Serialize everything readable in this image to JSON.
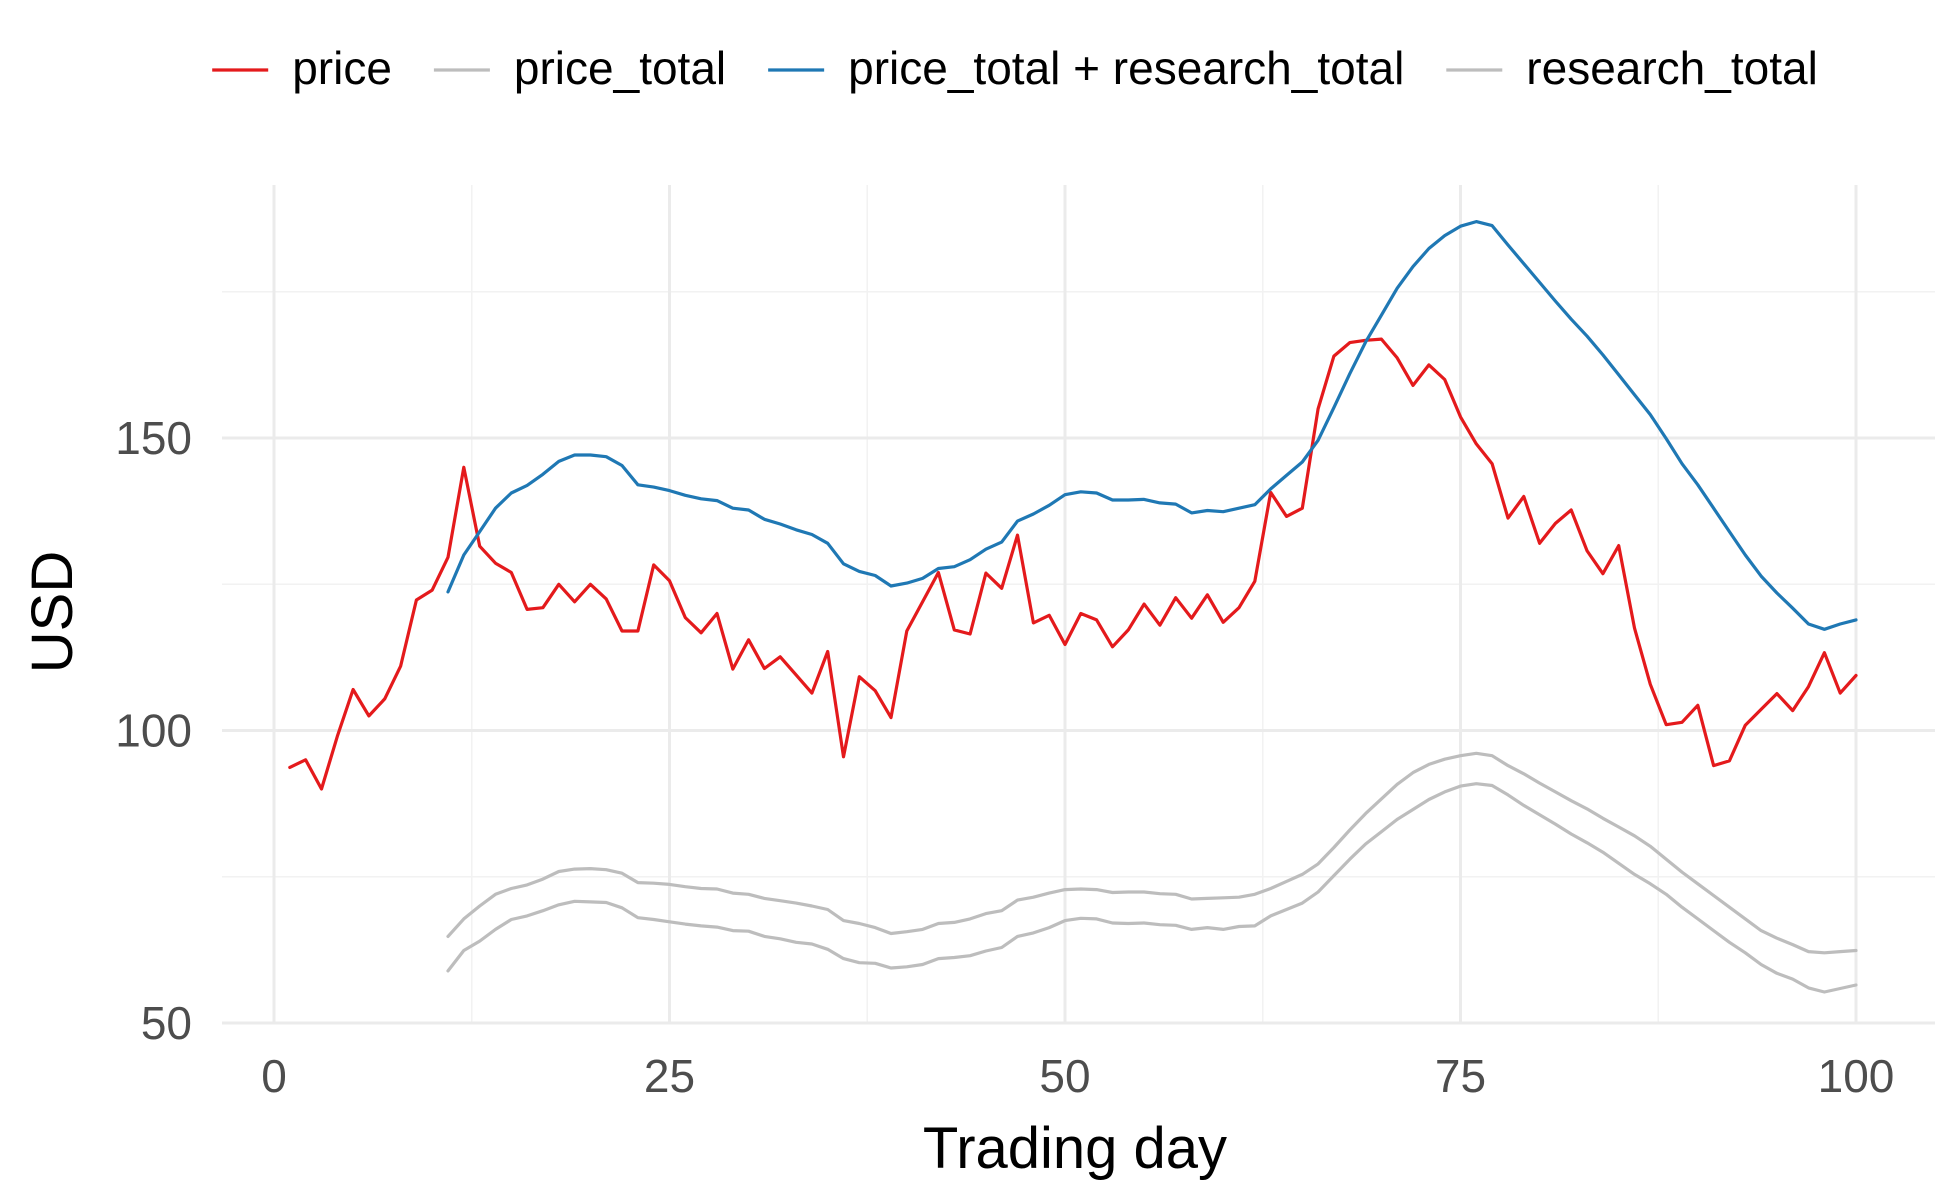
{
  "chart_data": {
    "type": "line",
    "title": "",
    "xlabel": "Trading day",
    "ylabel": "USD",
    "xlim": [
      1,
      100
    ],
    "ylim": [
      50,
      188
    ],
    "x_ticks": [
      0,
      25,
      50,
      75,
      100
    ],
    "y_ticks": [
      50,
      100,
      150
    ],
    "x_tick_labels": [
      "0",
      "25",
      "50",
      "75",
      "100"
    ],
    "y_tick_labels": [
      "50",
      "100",
      "150"
    ],
    "grid": true,
    "legend_position": "top",
    "series": [
      {
        "name": "price",
        "color": "#e41a1c",
        "x": [
          1,
          2,
          3,
          4,
          5,
          6,
          7,
          8,
          9,
          10,
          11,
          12,
          13,
          14,
          15,
          16,
          17,
          18,
          19,
          20,
          21,
          22,
          23,
          24,
          25,
          26,
          27,
          28,
          29,
          30,
          31,
          32,
          33,
          34,
          35,
          36,
          37,
          38,
          39,
          40,
          41,
          42,
          43,
          44,
          45,
          46,
          47,
          48,
          49,
          50,
          51,
          52,
          53,
          54,
          55,
          56,
          57,
          58,
          59,
          60,
          61,
          62,
          63,
          64,
          65,
          66,
          67,
          68,
          69,
          70,
          71,
          72,
          73,
          74,
          75,
          76,
          77,
          78,
          79,
          80,
          81,
          82,
          83,
          84,
          85,
          86,
          87,
          88,
          89,
          90,
          91,
          92,
          93,
          94,
          95,
          96,
          97,
          98,
          99,
          100
        ],
        "y": [
          93.7,
          95,
          90,
          99,
          107,
          102.5,
          105.4,
          111,
          122.3,
          124,
          129.6,
          145,
          131.5,
          128.6,
          127,
          120.7,
          121,
          125,
          122,
          125,
          122.5,
          117,
          117,
          128.3,
          125.6,
          119.3,
          116.7,
          120,
          110.5,
          115.5,
          110.6,
          112.6,
          109.5,
          106.4,
          113.5,
          95.5,
          109.2,
          106.8,
          102.2,
          117,
          122,
          127,
          117.2,
          116.5,
          126.9,
          124.3,
          133.4,
          118.4,
          119.7,
          114.7,
          120,
          118.9,
          114.3,
          117.2,
          121.6,
          118,
          122.7,
          119.2,
          123.2,
          118.5,
          121,
          125.5,
          140.7,
          136.6,
          138,
          155,
          164,
          166.3,
          166.7,
          166.9,
          163.7,
          159,
          162.5,
          160,
          153.6,
          149,
          145.6,
          136.3,
          140,
          132,
          135.4,
          137.7,
          130.7,
          126.8,
          131.6,
          117.5,
          107.9,
          101,
          101.4,
          104.3,
          94,
          94.8,
          100.9,
          103.6,
          106.3,
          103.4,
          107.5,
          113.3,
          106.4,
          109.4
        ]
      },
      {
        "name": "price_total",
        "color": "#bdbdbd",
        "x": [
          11,
          12,
          13,
          14,
          15,
          16,
          17,
          18,
          19,
          20,
          21,
          22,
          23,
          24,
          25,
          26,
          27,
          28,
          29,
          30,
          31,
          32,
          33,
          34,
          35,
          36,
          37,
          38,
          39,
          40,
          41,
          42,
          43,
          44,
          45,
          46,
          47,
          48,
          49,
          50,
          51,
          52,
          53,
          54,
          55,
          56,
          57,
          58,
          59,
          60,
          61,
          62,
          63,
          64,
          65,
          66,
          67,
          68,
          69,
          70,
          71,
          72,
          73,
          74,
          75,
          76,
          77,
          78,
          79,
          80,
          81,
          82,
          83,
          84,
          85,
          86,
          87,
          88,
          89,
          90,
          91,
          92,
          93,
          94,
          95,
          96,
          97,
          98,
          99,
          100
        ],
        "y": [
          64.8,
          67.8,
          70,
          72,
          73,
          73.6,
          74.6,
          75.9,
          76.3,
          76.4,
          76.2,
          75.6,
          74,
          73.9,
          73.7,
          73.3,
          73,
          72.9,
          72.2,
          72,
          71.3,
          70.9,
          70.5,
          70,
          69.4,
          67.5,
          67,
          66.3,
          65.3,
          65.6,
          66,
          67,
          67.2,
          67.8,
          68.7,
          69.2,
          71,
          71.5,
          72.2,
          72.8,
          72.9,
          72.8,
          72.3,
          72.4,
          72.4,
          72.1,
          72,
          71.2,
          71.3,
          71.4,
          71.5,
          72,
          73,
          74.2,
          75.4,
          77.2,
          80,
          83,
          85.8,
          88.3,
          90.8,
          92.8,
          94.2,
          95.1,
          95.7,
          96.1,
          95.7,
          94,
          92.6,
          91,
          89.5,
          88,
          86.6,
          85,
          83.5,
          82,
          80.2,
          78,
          75.8,
          73.8,
          71.8,
          69.8,
          67.8,
          65.8,
          64.5,
          63.4,
          62.2,
          62,
          62.2,
          62.4
        ]
      },
      {
        "name": "price_total + research_total",
        "color": "#1f78b4",
        "x": [
          11,
          12,
          13,
          14,
          15,
          16,
          17,
          18,
          19,
          20,
          21,
          22,
          23,
          24,
          25,
          26,
          27,
          28,
          29,
          30,
          31,
          32,
          33,
          34,
          35,
          36,
          37,
          38,
          39,
          40,
          41,
          42,
          43,
          44,
          45,
          46,
          47,
          48,
          49,
          50,
          51,
          52,
          53,
          54,
          55,
          56,
          57,
          58,
          59,
          60,
          61,
          62,
          63,
          64,
          65,
          66,
          67,
          68,
          69,
          70,
          71,
          72,
          73,
          74,
          75,
          76,
          77,
          78,
          79,
          80,
          81,
          82,
          83,
          84,
          85,
          86,
          87,
          88,
          89,
          90,
          91,
          92,
          93,
          94,
          95,
          96,
          97,
          98,
          99,
          100
        ],
        "y": [
          123.7,
          130,
          134,
          138,
          140.6,
          141.9,
          143.8,
          146,
          147.1,
          147.1,
          146.8,
          145.3,
          142,
          141.6,
          141,
          140.2,
          139.6,
          139.3,
          138,
          137.7,
          136.1,
          135.3,
          134.3,
          133.5,
          132,
          128.5,
          127.2,
          126.5,
          124.7,
          125.2,
          126,
          127.7,
          128,
          129.2,
          131,
          132.2,
          135.8,
          137,
          138.5,
          140.3,
          140.8,
          140.6,
          139.4,
          139.4,
          139.5,
          138.9,
          138.7,
          137.2,
          137.6,
          137.4,
          138,
          138.6,
          141.3,
          143.6,
          145.9,
          149.6,
          155.2,
          161,
          166.4,
          171,
          175.6,
          179.3,
          182.4,
          184.6,
          186.2,
          187,
          186.3,
          183,
          179.8,
          176.6,
          173.4,
          170.3,
          167.4,
          164.2,
          160.8,
          157.4,
          154,
          149.9,
          145.6,
          142,
          138,
          134,
          130,
          126.4,
          123.5,
          120.9,
          118.2,
          117.3,
          118.2,
          118.9
        ]
      },
      {
        "name": "research_total",
        "color": "#bdbdbd",
        "x": [
          11,
          12,
          13,
          14,
          15,
          16,
          17,
          18,
          19,
          20,
          21,
          22,
          23,
          24,
          25,
          26,
          27,
          28,
          29,
          30,
          31,
          32,
          33,
          34,
          35,
          36,
          37,
          38,
          39,
          40,
          41,
          42,
          43,
          44,
          45,
          46,
          47,
          48,
          49,
          50,
          51,
          52,
          53,
          54,
          55,
          56,
          57,
          58,
          59,
          60,
          61,
          62,
          63,
          64,
          65,
          66,
          67,
          68,
          69,
          70,
          71,
          72,
          73,
          74,
          75,
          76,
          77,
          78,
          79,
          80,
          81,
          82,
          83,
          84,
          85,
          86,
          87,
          88,
          89,
          90,
          91,
          92,
          93,
          94,
          95,
          96,
          97,
          98,
          99,
          100
        ],
        "y": [
          58.9,
          62.4,
          64,
          66,
          67.7,
          68.3,
          69.2,
          70.2,
          70.8,
          70.7,
          70.6,
          69.7,
          68,
          67.7,
          67.3,
          66.9,
          66.6,
          66.4,
          65.8,
          65.7,
          64.8,
          64.4,
          63.8,
          63.5,
          62.6,
          61,
          60.3,
          60.2,
          59.4,
          59.6,
          60,
          61,
          61.2,
          61.5,
          62.3,
          62.9,
          64.8,
          65.4,
          66.3,
          67.5,
          67.9,
          67.8,
          67.1,
          67,
          67.1,
          66.8,
          66.7,
          66,
          66.3,
          66,
          66.5,
          66.6,
          68.3,
          69.4,
          70.5,
          72.4,
          75.2,
          78,
          80.6,
          82.7,
          84.8,
          86.5,
          88.2,
          89.5,
          90.5,
          90.9,
          90.6,
          89,
          87.2,
          85.6,
          84,
          82.3,
          80.8,
          79.2,
          77.3,
          75.4,
          73.8,
          72,
          69.8,
          67.8,
          65.8,
          63.8,
          62,
          60,
          58.5,
          57.5,
          56,
          55.3,
          55.9,
          56.5
        ]
      }
    ]
  }
}
